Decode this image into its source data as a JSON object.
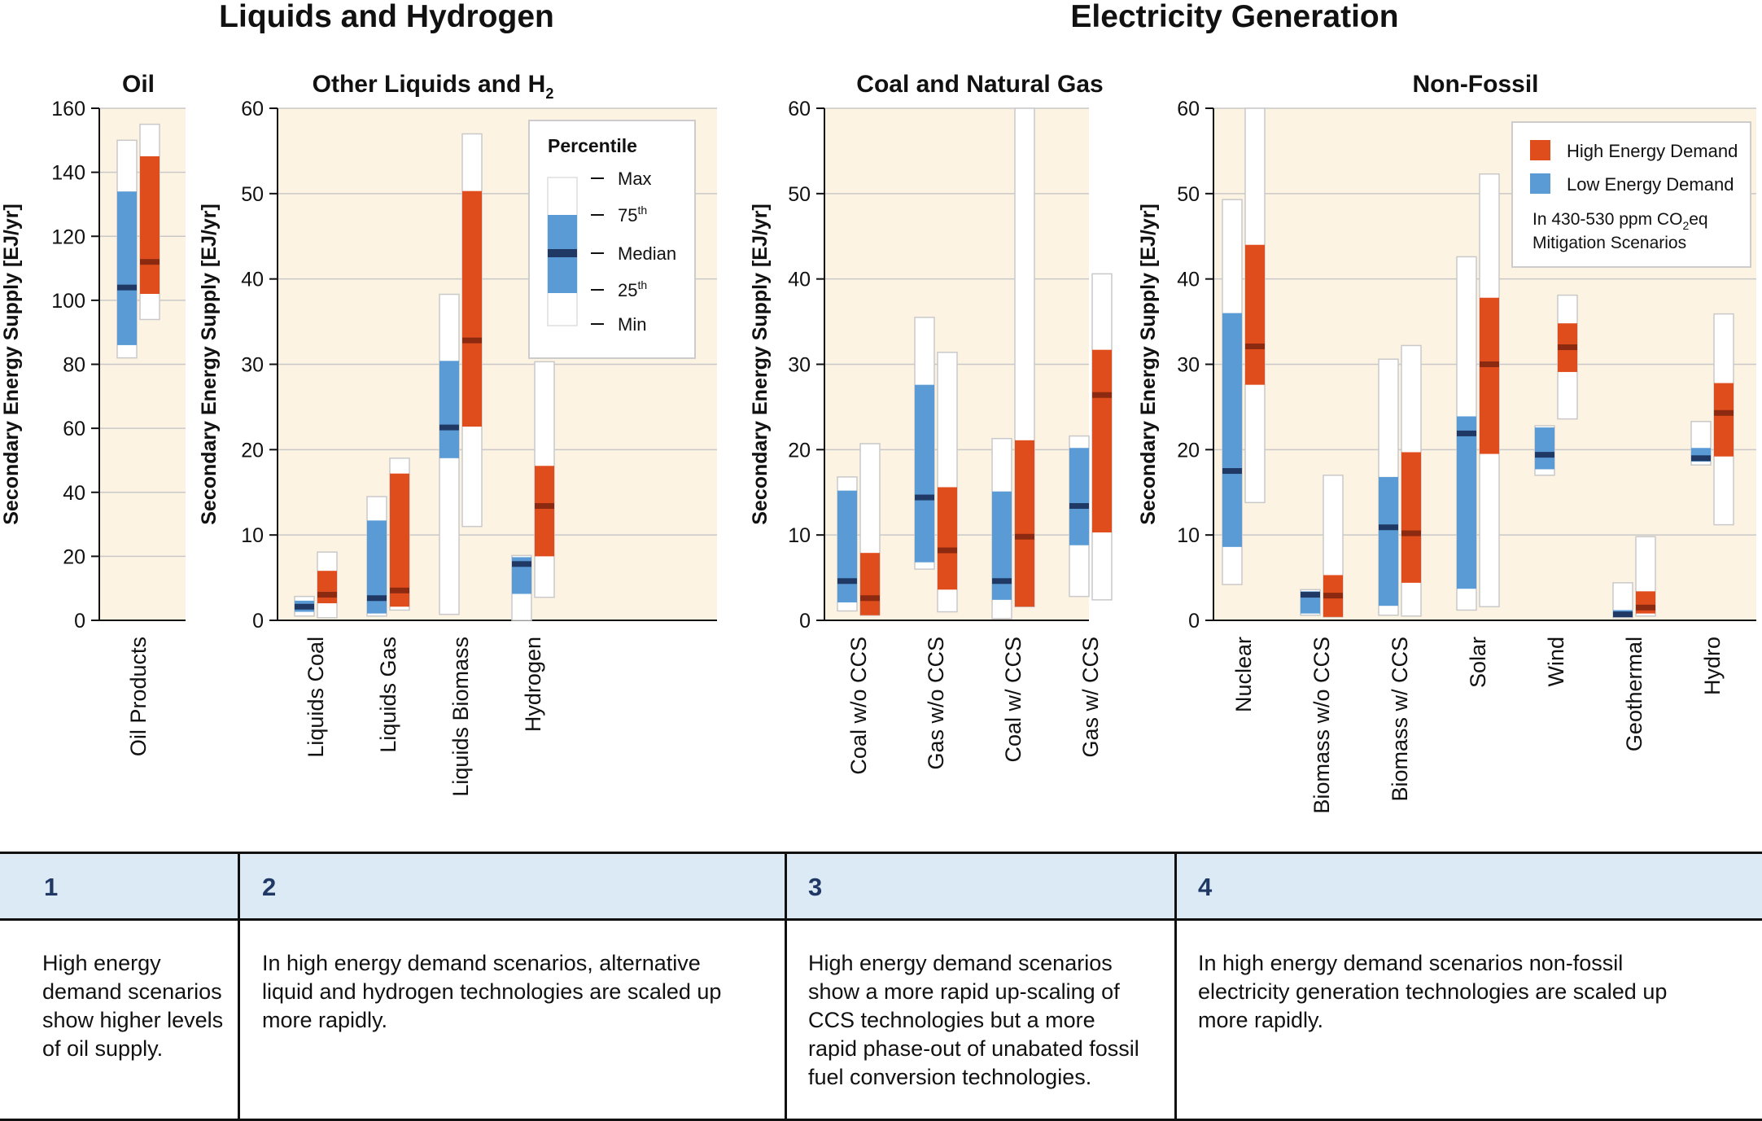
{
  "headings": {
    "liquids": "Liquids and Hydrogen",
    "electricity": "Electricity Generation"
  },
  "colors": {
    "panel_bg": "#fdf3e3",
    "grid": "#c8c8c8",
    "low_demand": "#5b9bd5",
    "high_demand": "#e04d1c",
    "median_low": "#1f3864",
    "median_high": "#8b2a10",
    "range_bar": "#ffffff"
  },
  "legend_percentile": {
    "title": "Percentile",
    "items": [
      "Max",
      "75th",
      "Median",
      "25th",
      "Min"
    ]
  },
  "legend_demand": {
    "high": "High Energy Demand",
    "low": "Low Energy Demand",
    "note_line1": "In 430-530 ppm CO2eq",
    "note_line2": "Mitigation Scenarios"
  },
  "chart_data": [
    {
      "type": "box",
      "title": "Oil",
      "ylabel": "Secondary Energy Supply [EJ/yr]",
      "ylim": [
        0,
        160
      ],
      "yticks": [
        0,
        20,
        40,
        60,
        80,
        100,
        120,
        140,
        160
      ],
      "categories": [
        "Oil Products"
      ],
      "series": [
        {
          "name": "Low Energy Demand",
          "stats": [
            {
              "min": 82,
              "q1": 86,
              "median": 104,
              "q3": 134,
              "max": 150
            }
          ]
        },
        {
          "name": "High Energy Demand",
          "stats": [
            {
              "min": 94,
              "q1": 102,
              "median": 112,
              "q3": 145,
              "max": 155
            }
          ]
        }
      ]
    },
    {
      "type": "box",
      "title": "Other Liquids and H2",
      "ylabel": "Secondary Energy Supply [EJ/yr]",
      "ylim": [
        0,
        60
      ],
      "yticks": [
        0,
        10,
        20,
        30,
        40,
        50,
        60
      ],
      "categories": [
        "Liquids Coal",
        "Liquids Gas",
        "Liquids Biomass",
        "Hydrogen"
      ],
      "series": [
        {
          "name": "Low Energy Demand",
          "stats": [
            {
              "min": 0.5,
              "q1": 1.0,
              "median": 1.6,
              "q3": 2.3,
              "max": 2.8
            },
            {
              "min": 0.5,
              "q1": 0.8,
              "median": 2.6,
              "q3": 11.7,
              "max": 14.5
            },
            {
              "min": 0.7,
              "q1": 19.0,
              "median": 22.6,
              "q3": 30.4,
              "max": 38.2
            },
            {
              "min": 0.0,
              "q1": 3.1,
              "median": 6.6,
              "q3": 7.4,
              "max": 7.6
            }
          ]
        },
        {
          "name": "High Energy Demand",
          "stats": [
            {
              "min": 0.3,
              "q1": 2.0,
              "median": 3.0,
              "q3": 5.8,
              "max": 8.0
            },
            {
              "min": 1.2,
              "q1": 1.6,
              "median": 3.5,
              "q3": 17.2,
              "max": 19.0
            },
            {
              "min": 11.0,
              "q1": 22.7,
              "median": 32.8,
              "q3": 50.3,
              "max": 57.0
            },
            {
              "min": 2.7,
              "q1": 7.5,
              "median": 13.4,
              "q3": 18.1,
              "max": 30.3
            }
          ]
        }
      ]
    },
    {
      "type": "box",
      "title": "Coal and Natural Gas",
      "ylabel": "Secondary Energy Supply [EJ/yr]",
      "ylim": [
        0,
        60
      ],
      "yticks": [
        0,
        10,
        20,
        30,
        40,
        50,
        60
      ],
      "categories": [
        "Coal w/o CCS",
        "Gas w/o CCS",
        "Coal w/ CCS",
        "Gas w/ CCS"
      ],
      "series": [
        {
          "name": "Low Energy Demand",
          "stats": [
            {
              "min": 1.1,
              "q1": 2.1,
              "median": 4.6,
              "q3": 15.2,
              "max": 16.8
            },
            {
              "min": 6.0,
              "q1": 6.8,
              "median": 14.4,
              "q3": 27.6,
              "max": 35.5
            },
            {
              "min": 0.2,
              "q1": 2.4,
              "median": 4.6,
              "q3": 15.1,
              "max": 21.3
            },
            {
              "min": 2.8,
              "q1": 8.8,
              "median": 13.4,
              "q3": 20.2,
              "max": 21.6
            }
          ]
        },
        {
          "name": "High Energy Demand",
          "stats": [
            {
              "min": 0.6,
              "q1": 0.6,
              "median": 2.6,
              "q3": 7.9,
              "max": 20.7
            },
            {
              "min": 1.0,
              "q1": 3.6,
              "median": 8.2,
              "q3": 15.6,
              "max": 31.4
            },
            {
              "min": 1.6,
              "q1": 1.6,
              "median": 9.8,
              "q3": 21.1,
              "max": 60.0
            },
            {
              "min": 2.4,
              "q1": 10.3,
              "median": 26.4,
              "q3": 31.7,
              "max": 40.6
            }
          ]
        }
      ]
    },
    {
      "type": "box",
      "title": "Non-Fossil",
      "ylabel": "Secondary Energy Supply [EJ/yr]",
      "ylim": [
        0,
        60
      ],
      "yticks": [
        0,
        10,
        20,
        30,
        40,
        50,
        60
      ],
      "categories": [
        "Nuclear",
        "Biomass w/o CCS",
        "Biomass w/ CCS",
        "Solar",
        "Wind",
        "Geothermal",
        "Hydro"
      ],
      "series": [
        {
          "name": "Low Energy Demand",
          "stats": [
            {
              "min": 4.2,
              "q1": 8.6,
              "median": 17.5,
              "q3": 36.0,
              "max": 49.3
            },
            {
              "min": 0.6,
              "q1": 0.8,
              "median": 3.0,
              "q3": 3.4,
              "max": 3.6
            },
            {
              "min": 0.6,
              "q1": 1.7,
              "median": 10.9,
              "q3": 16.8,
              "max": 30.6
            },
            {
              "min": 1.2,
              "q1": 3.7,
              "median": 21.9,
              "q3": 23.9,
              "max": 42.6
            },
            {
              "min": 17.0,
              "q1": 17.7,
              "median": 19.4,
              "q3": 22.6,
              "max": 22.8
            },
            {
              "min": 0.3,
              "q1": 0.4,
              "median": 0.7,
              "q3": 1.2,
              "max": 4.4
            },
            {
              "min": 18.2,
              "q1": 18.6,
              "median": 19.0,
              "q3": 20.2,
              "max": 23.3
            }
          ]
        },
        {
          "name": "High Energy Demand",
          "stats": [
            {
              "min": 13.8,
              "q1": 27.6,
              "median": 32.1,
              "q3": 44.0,
              "max": 60.0
            },
            {
              "min": 0.4,
              "q1": 0.4,
              "median": 2.9,
              "q3": 5.3,
              "max": 17.0
            },
            {
              "min": 0.5,
              "q1": 4.4,
              "median": 10.2,
              "q3": 19.7,
              "max": 32.2
            },
            {
              "min": 1.6,
              "q1": 19.5,
              "median": 30.0,
              "q3": 37.8,
              "max": 52.3
            },
            {
              "min": 23.6,
              "q1": 29.1,
              "median": 32.0,
              "q3": 34.8,
              "max": 38.1
            },
            {
              "min": 0.5,
              "q1": 0.8,
              "median": 1.5,
              "q3": 3.4,
              "max": 9.8
            },
            {
              "min": 11.2,
              "q1": 19.2,
              "median": 24.3,
              "q3": 27.8,
              "max": 35.9
            }
          ]
        }
      ]
    }
  ],
  "notes": [
    {
      "number": "1",
      "text": "High energy demand scenarios show higher levels of oil supply."
    },
    {
      "number": "2",
      "text": "In high energy demand scenarios, alternative liquid and hydrogen technologies are scaled up more rapidly."
    },
    {
      "number": "3",
      "text": "High energy demand scenarios show a more rapid up-scaling of CCS technologies but a more rapid phase-out of unabated fossil fuel conversion technologies."
    },
    {
      "number": "4",
      "text": "In high energy demand scenarios non-fossil electricity generation technologies are scaled up more rapidly."
    }
  ]
}
